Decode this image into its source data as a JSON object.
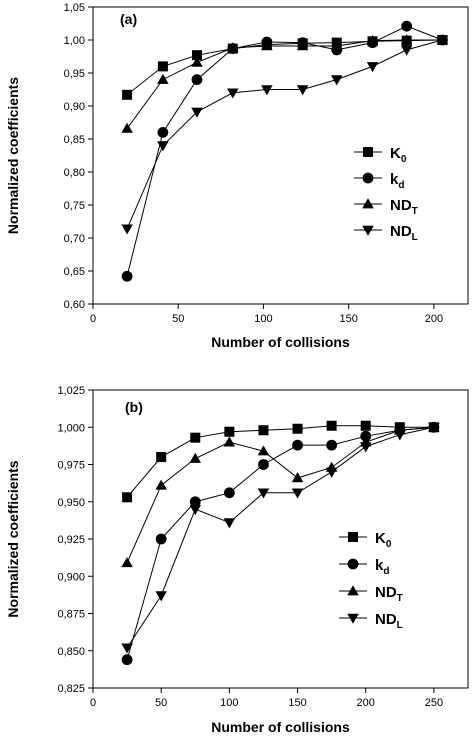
{
  "chart_data": [
    {
      "type": "line",
      "panel": "(a)",
      "xlabel": "Number of collisions",
      "ylabel": "Normalized coefficients",
      "xlim": [
        0,
        220
      ],
      "ylim": [
        0.6,
        1.05
      ],
      "xticks": [
        0,
        50,
        100,
        150,
        200
      ],
      "xtick_labels": [
        "0",
        "50",
        "100",
        "150",
        "200"
      ],
      "yticks": [
        0.6,
        0.65,
        0.7,
        0.75,
        0.8,
        0.85,
        0.9,
        0.95,
        1.0,
        1.05
      ],
      "ytick_labels": [
        "0,60",
        "0,65",
        "0,70",
        "0,75",
        "0,80",
        "0,85",
        "0,90",
        "0,95",
        "1,00",
        "1,05"
      ],
      "legend_position": "right",
      "grid": false,
      "series": [
        {
          "name": "K",
          "sub": "0",
          "marker": "square",
          "x": [
            20,
            41,
            61,
            82,
            102,
            123,
            143,
            164,
            184,
            205
          ],
          "y": [
            0.917,
            0.96,
            0.977,
            0.987,
            0.993,
            0.995,
            0.996,
            0.998,
            0.999,
            1.0
          ]
        },
        {
          "name": "k",
          "sub": "d",
          "marker": "circle",
          "x": [
            20,
            41,
            61,
            82,
            102,
            123,
            143,
            164,
            184,
            205
          ],
          "y": [
            0.642,
            0.86,
            0.94,
            0.987,
            0.997,
            0.996,
            0.985,
            0.996,
            1.021,
            1.0
          ]
        },
        {
          "name": "ND",
          "sub": "T",
          "marker": "triangle-up",
          "x": [
            20,
            41,
            61,
            82,
            102,
            123,
            143,
            164,
            184,
            205
          ],
          "y": [
            0.866,
            0.94,
            0.966,
            0.988,
            0.991,
            0.991,
            0.991,
            0.999,
            1.0,
            1.0
          ]
        },
        {
          "name": "ND",
          "sub": "L",
          "marker": "triangle-down",
          "x": [
            20,
            41,
            61,
            82,
            102,
            123,
            143,
            164,
            184,
            205
          ],
          "y": [
            0.714,
            0.84,
            0.891,
            0.92,
            0.925,
            0.925,
            0.94,
            0.96,
            0.985,
            1.0
          ]
        }
      ]
    },
    {
      "type": "line",
      "panel": "(b)",
      "xlabel": "Number of collisions",
      "ylabel": "Normalized coefficients",
      "xlim": [
        0,
        275
      ],
      "ylim": [
        0.825,
        1.025
      ],
      "xticks": [
        0,
        50,
        100,
        150,
        200,
        250
      ],
      "xtick_labels": [
        "0",
        "50",
        "100",
        "150",
        "200",
        "250"
      ],
      "yticks": [
        0.825,
        0.85,
        0.875,
        0.9,
        0.925,
        0.95,
        0.975,
        1.0,
        1.025
      ],
      "ytick_labels": [
        "0,825",
        "0,850",
        "0,875",
        "0,900",
        "0,925",
        "0,950",
        "0,975",
        "1,000",
        "1,025"
      ],
      "legend_position": "right",
      "grid": false,
      "series": [
        {
          "name": "K",
          "sub": "0",
          "marker": "square",
          "x": [
            25,
            50,
            75,
            100,
            125,
            150,
            175,
            200,
            225,
            250
          ],
          "y": [
            0.953,
            0.98,
            0.993,
            0.997,
            0.998,
            0.999,
            1.001,
            1.001,
            1.0,
            1.0
          ]
        },
        {
          "name": "k",
          "sub": "d",
          "marker": "circle",
          "x": [
            25,
            50,
            75,
            100,
            125,
            150,
            175,
            200,
            225,
            250
          ],
          "y": [
            0.844,
            0.925,
            0.95,
            0.956,
            0.975,
            0.988,
            0.988,
            0.994,
            0.998,
            1.0
          ]
        },
        {
          "name": "ND",
          "sub": "T",
          "marker": "triangle-up",
          "x": [
            25,
            50,
            75,
            100,
            125,
            150,
            175,
            200,
            225,
            250
          ],
          "y": [
            0.909,
            0.961,
            0.979,
            0.99,
            0.984,
            0.966,
            0.973,
            0.99,
            0.998,
            1.0
          ]
        },
        {
          "name": "ND",
          "sub": "L",
          "marker": "triangle-down",
          "x": [
            25,
            50,
            75,
            100,
            125,
            150,
            175,
            200,
            225,
            250
          ],
          "y": [
            0.852,
            0.887,
            0.945,
            0.936,
            0.956,
            0.956,
            0.97,
            0.987,
            0.995,
            1.0
          ]
        }
      ]
    }
  ]
}
